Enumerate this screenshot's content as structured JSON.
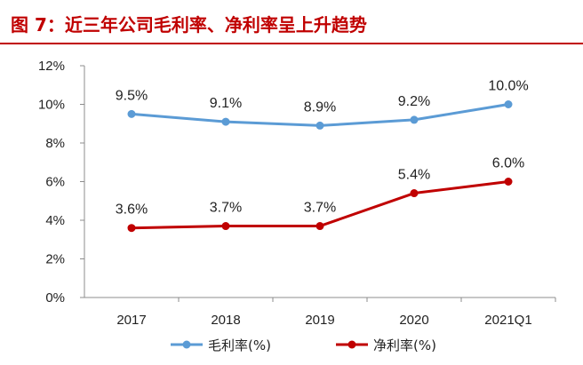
{
  "title": "图 7：近三年公司毛利率、净利率呈上升趋势",
  "chart_data": {
    "type": "line",
    "categories": [
      "2017",
      "2018",
      "2019",
      "2020",
      "2021Q1"
    ],
    "series": [
      {
        "name": "毛利率(%)",
        "values": [
          9.5,
          9.1,
          8.9,
          9.2,
          10.0
        ],
        "labels": [
          "9.5%",
          "9.1%",
          "8.9%",
          "9.2%",
          "10.0%"
        ],
        "color": "#5b9bd5"
      },
      {
        "name": "净利率(%)",
        "values": [
          3.6,
          3.7,
          3.7,
          5.4,
          6.0
        ],
        "labels": [
          "3.6%",
          "3.7%",
          "3.7%",
          "5.4%",
          "6.0%"
        ],
        "color": "#c00000"
      }
    ],
    "y_ticks": [
      "0%",
      "2%",
      "4%",
      "6%",
      "8%",
      "10%",
      "12%"
    ],
    "ylim": [
      0,
      12
    ],
    "legend_position": "bottom",
    "grid": false
  }
}
